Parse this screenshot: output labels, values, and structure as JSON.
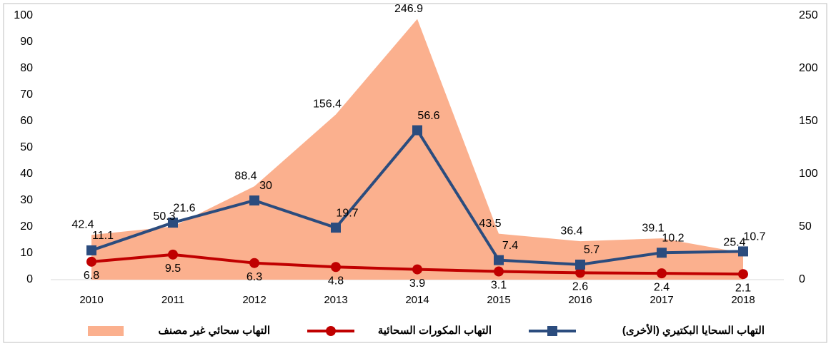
{
  "chart_data": {
    "type": "line",
    "categories": [
      "2010",
      "2011",
      "2012",
      "2013",
      "2014",
      "2015",
      "2016",
      "2017",
      "2018"
    ],
    "ylim": [
      0,
      100
    ],
    "yticks": [
      0,
      10,
      20,
      30,
      40,
      50,
      60,
      70,
      80,
      90,
      100
    ],
    "y2lim": [
      0,
      250
    ],
    "y2ticks": [
      0,
      50,
      100,
      150,
      200,
      250
    ],
    "legend": "bottom",
    "series": [
      {
        "name": "التهاب السحايا البكتيري (الأخرى)",
        "color": "#2b4c7e",
        "kind": "line",
        "marker": "square",
        "axis": "y",
        "values": [
          11.1,
          21.6,
          30,
          19.7,
          56.6,
          7.4,
          5.7,
          10.2,
          10.7
        ]
      },
      {
        "name": "التهاب المكورات السحائية",
        "color": "#c00000",
        "kind": "line",
        "marker": "circle",
        "axis": "y",
        "values": [
          6.8,
          9.5,
          6.3,
          4.8,
          3.9,
          3.1,
          2.6,
          2.4,
          2.1
        ]
      },
      {
        "name": "التهاب سحائي غير مصنف",
        "color": "#fbb08e",
        "kind": "area",
        "axis": "y2",
        "values": [
          42.4,
          50.3,
          88.4,
          156.4,
          246.9,
          43.5,
          36.4,
          39.1,
          25.4
        ]
      }
    ]
  }
}
